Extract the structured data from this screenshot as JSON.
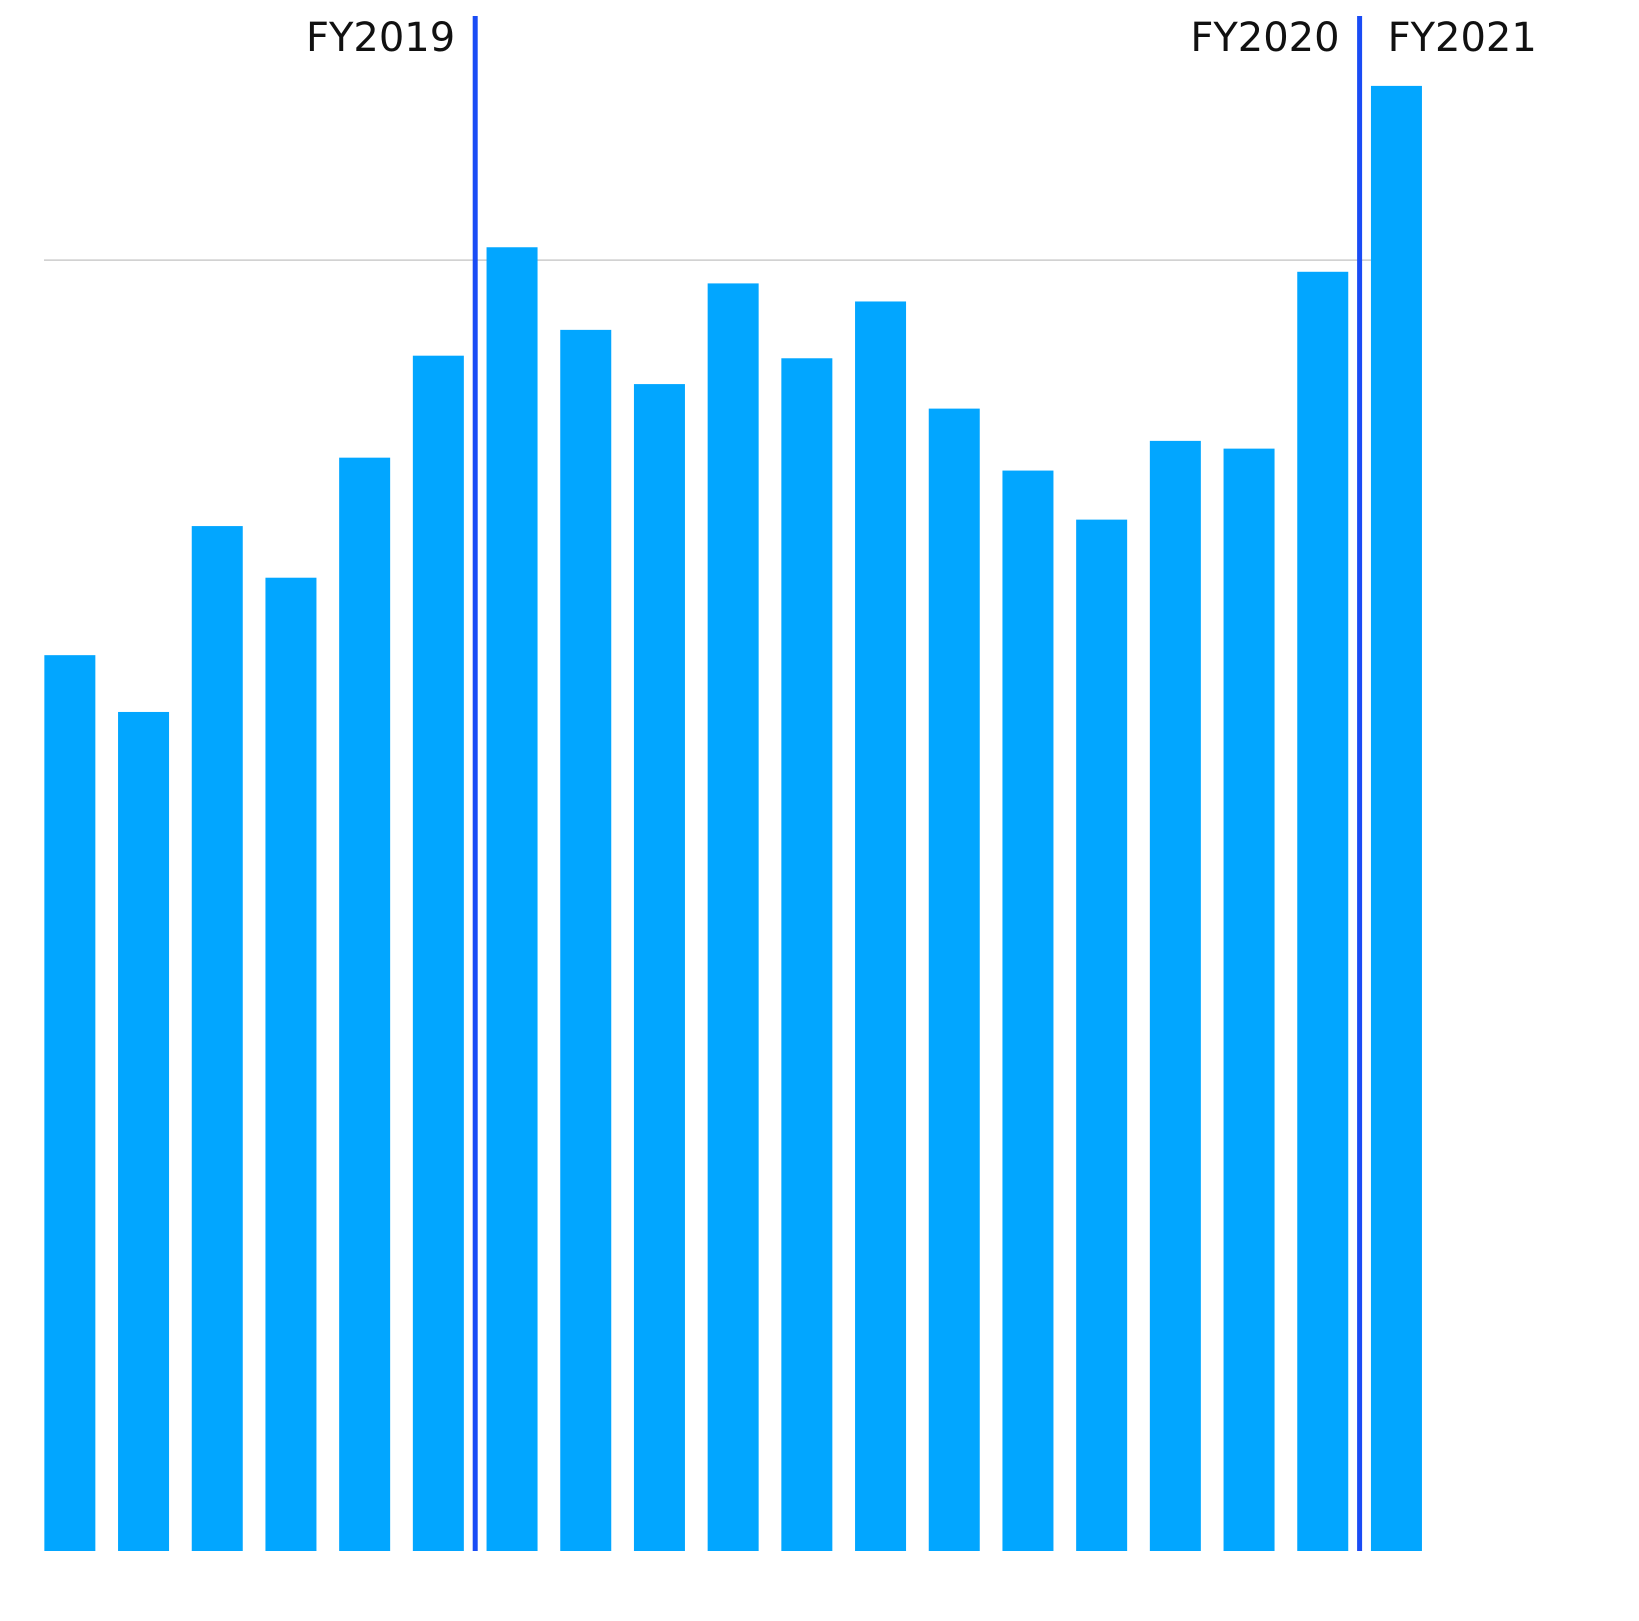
{
  "chart_data": {
    "type": "bar",
    "categories": [
      null,
      null,
      null,
      null,
      null,
      null,
      null,
      null,
      null,
      null,
      null,
      null,
      null,
      null,
      null,
      null,
      null,
      null,
      null
    ],
    "values": [
      69.4,
      65.0,
      79.4,
      75.4,
      84.7,
      92.6,
      101.0,
      94.6,
      90.4,
      98.2,
      92.4,
      96.8,
      88.5,
      83.7,
      79.9,
      86.0,
      85.4,
      99.1,
      113.5
    ],
    "color": "#02a6ff",
    "ylim": [
      0,
      120
    ],
    "yticks": [
      100
    ],
    "grid": true,
    "periods": [
      {
        "label": "FY2019",
        "start": 0
      },
      {
        "label": "FY2020",
        "start": 6
      },
      {
        "label": "FY2021",
        "start": 18
      }
    ],
    "separator_color": "#1a4cf5"
  }
}
